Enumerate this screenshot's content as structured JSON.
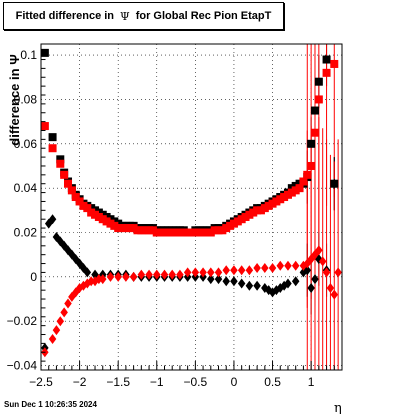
{
  "title": {
    "prefix": "Fitted difference in",
    "symbol": "Ψ",
    "suffix": "for Global Rec Pion EtapT"
  },
  "timestamp": "Sun Dec  1 10:26:35 2024",
  "chart_data": {
    "type": "scatter",
    "xlabel": "η",
    "ylabel": "difference in Ψ",
    "xlim": [
      -2.5,
      1.4
    ],
    "ylim": [
      -0.042,
      0.105
    ],
    "x_ticks": [
      -2.5,
      -2,
      -1.5,
      -1,
      -0.5,
      0,
      0.5,
      1
    ],
    "x_tick_labels": [
      "−2.5",
      "−2",
      "−1.5",
      "−1",
      "−0.5",
      "0",
      "0.5",
      "1"
    ],
    "y_ticks": [
      -0.04,
      -0.02,
      0,
      0.02,
      0.04,
      0.06,
      0.08,
      0.1
    ],
    "y_tick_labels": [
      "−0.04",
      "−0.02",
      "0",
      "0.02",
      "0.04",
      "0.06",
      "0.08",
      "0.1"
    ],
    "grid": true,
    "colors": {
      "black": "#000000",
      "red": "#ff0000"
    },
    "series": [
      {
        "marker": "square",
        "color": "#000000",
        "x": [
          -2.45,
          -2.35,
          -2.25,
          -2.2,
          -2.15,
          -2.1,
          -2.05,
          -2.0,
          -1.95,
          -1.9,
          -1.85,
          -1.8,
          -1.75,
          -1.7,
          -1.65,
          -1.6,
          -1.55,
          -1.5,
          -1.45,
          -1.4,
          -1.35,
          -1.3,
          -1.25,
          -1.2,
          -1.15,
          -1.1,
          -1.05,
          -1.0,
          -0.95,
          -0.9,
          -0.85,
          -0.8,
          -0.75,
          -0.7,
          -0.65,
          -0.6,
          -0.55,
          -0.5,
          -0.45,
          -0.4,
          -0.35,
          -0.3,
          -0.25,
          -0.2,
          -0.15,
          -0.1,
          -0.05,
          0.0,
          0.05,
          0.1,
          0.15,
          0.2,
          0.25,
          0.3,
          0.35,
          0.4,
          0.45,
          0.5,
          0.55,
          0.6,
          0.65,
          0.7,
          0.75,
          0.8,
          0.85,
          0.9,
          0.95,
          1.0,
          1.05,
          1.1,
          1.2,
          1.3
        ],
        "y": [
          0.101,
          0.063,
          0.053,
          0.047,
          0.043,
          0.04,
          0.037,
          0.035,
          0.033,
          0.032,
          0.031,
          0.03,
          0.029,
          0.028,
          0.027,
          0.026,
          0.025,
          0.024,
          0.023,
          0.023,
          0.023,
          0.023,
          0.022,
          0.022,
          0.022,
          0.022,
          0.022,
          0.021,
          0.021,
          0.021,
          0.021,
          0.021,
          0.021,
          0.021,
          0.021,
          0.02,
          0.02,
          0.021,
          0.021,
          0.021,
          0.021,
          0.021,
          0.022,
          0.022,
          0.022,
          0.023,
          0.024,
          0.025,
          0.026,
          0.027,
          0.028,
          0.029,
          0.03,
          0.031,
          0.031,
          0.032,
          0.033,
          0.034,
          0.035,
          0.036,
          0.037,
          0.038,
          0.04,
          0.041,
          0.042,
          0.042,
          0.045,
          0.06,
          0.075,
          0.088,
          0.098,
          0.042
        ]
      },
      {
        "marker": "square",
        "color": "#ff0000",
        "x": [
          -2.45,
          -2.35,
          -2.25,
          -2.2,
          -2.15,
          -2.1,
          -2.05,
          -2.0,
          -1.95,
          -1.9,
          -1.85,
          -1.8,
          -1.75,
          -1.7,
          -1.65,
          -1.6,
          -1.55,
          -1.5,
          -1.45,
          -1.4,
          -1.35,
          -1.3,
          -1.25,
          -1.2,
          -1.15,
          -1.1,
          -1.05,
          -1.0,
          -0.95,
          -0.9,
          -0.85,
          -0.8,
          -0.75,
          -0.7,
          -0.65,
          -0.6,
          -0.55,
          -0.5,
          -0.45,
          -0.4,
          -0.35,
          -0.3,
          -0.25,
          -0.2,
          -0.15,
          -0.1,
          -0.05,
          0.0,
          0.05,
          0.1,
          0.15,
          0.2,
          0.25,
          0.3,
          0.35,
          0.4,
          0.45,
          0.5,
          0.55,
          0.6,
          0.65,
          0.7,
          0.75,
          0.8,
          0.85,
          0.9,
          0.95,
          1.0,
          1.05,
          1.1,
          1.2,
          1.3
        ],
        "y": [
          0.068,
          0.058,
          0.051,
          0.046,
          0.042,
          0.039,
          0.036,
          0.034,
          0.032,
          0.031,
          0.029,
          0.028,
          0.027,
          0.026,
          0.025,
          0.024,
          0.023,
          0.022,
          0.022,
          0.022,
          0.022,
          0.022,
          0.021,
          0.021,
          0.021,
          0.021,
          0.021,
          0.02,
          0.02,
          0.02,
          0.02,
          0.02,
          0.02,
          0.02,
          0.02,
          0.02,
          0.02,
          0.02,
          0.02,
          0.02,
          0.02,
          0.02,
          0.021,
          0.021,
          0.021,
          0.022,
          0.023,
          0.024,
          0.025,
          0.026,
          0.027,
          0.028,
          0.029,
          0.03,
          0.03,
          0.031,
          0.032,
          0.033,
          0.034,
          0.035,
          0.036,
          0.037,
          0.038,
          0.039,
          0.04,
          0.043,
          0.046,
          0.05,
          0.065,
          0.08,
          0.092,
          0.096
        ]
      },
      {
        "marker": "diamond",
        "color": "#000000",
        "x": [
          -2.45,
          -2.4,
          -2.35,
          -2.3,
          -2.25,
          -2.2,
          -2.15,
          -2.1,
          -2.05,
          -2.0,
          -1.95,
          -1.9,
          -1.8,
          -1.7,
          -1.6,
          -1.5,
          -1.4,
          -1.3,
          -1.2,
          -1.1,
          -1.0,
          -0.9,
          -0.8,
          -0.7,
          -0.6,
          -0.5,
          -0.4,
          -0.3,
          -0.2,
          -0.1,
          0.0,
          0.1,
          0.2,
          0.3,
          0.4,
          0.45,
          0.5,
          0.55,
          0.6,
          0.65,
          0.7,
          0.8,
          0.9,
          0.95,
          1.0,
          1.05,
          1.1,
          1.2,
          1.3
        ],
        "y": [
          -0.032,
          0.024,
          0.026,
          0.018,
          0.016,
          0.014,
          0.012,
          0.01,
          0.008,
          0.006,
          0.004,
          0.002,
          0.001,
          0.001,
          0.001,
          0.001,
          0.001,
          0.0,
          0.0,
          0.0,
          0.0,
          0.0,
          0.0,
          0.0,
          0.0,
          0.0,
          0.0,
          -0.001,
          -0.001,
          -0.002,
          -0.002,
          -0.003,
          -0.004,
          -0.004,
          -0.005,
          -0.006,
          -0.007,
          -0.006,
          -0.005,
          -0.004,
          -0.003,
          -0.002,
          0.002,
          0.003,
          -0.005,
          -0.001,
          0.008,
          0.003,
          0.042
        ]
      },
      {
        "marker": "diamond",
        "color": "#ff0000",
        "x": [
          -2.45,
          -2.35,
          -2.3,
          -2.25,
          -2.2,
          -2.15,
          -2.1,
          -2.05,
          -2.0,
          -1.95,
          -1.9,
          -1.85,
          -1.8,
          -1.75,
          -1.7,
          -1.6,
          -1.5,
          -1.4,
          -1.3,
          -1.2,
          -1.1,
          -1.0,
          -0.9,
          -0.8,
          -0.7,
          -0.6,
          -0.5,
          -0.4,
          -0.3,
          -0.2,
          -0.1,
          0.0,
          0.1,
          0.2,
          0.3,
          0.4,
          0.5,
          0.6,
          0.7,
          0.8,
          0.9,
          0.95,
          1.0,
          1.05,
          1.1,
          1.15,
          1.2,
          1.25,
          1.3,
          1.35
        ],
        "y": [
          -0.034,
          -0.028,
          -0.024,
          -0.02,
          -0.016,
          -0.012,
          -0.009,
          -0.007,
          -0.005,
          -0.004,
          -0.003,
          -0.002,
          -0.002,
          -0.001,
          -0.001,
          0.0,
          0.0,
          0.0,
          0.0,
          0.001,
          0.001,
          0.001,
          0.001,
          0.001,
          0.001,
          0.002,
          0.002,
          0.002,
          0.002,
          0.002,
          0.003,
          0.003,
          0.003,
          0.003,
          0.004,
          0.004,
          0.004,
          0.005,
          0.005,
          0.005,
          0.005,
          0.006,
          0.008,
          0.01,
          0.012,
          0.007,
          0.002,
          -0.005,
          -0.008,
          0.002
        ]
      }
    ]
  }
}
